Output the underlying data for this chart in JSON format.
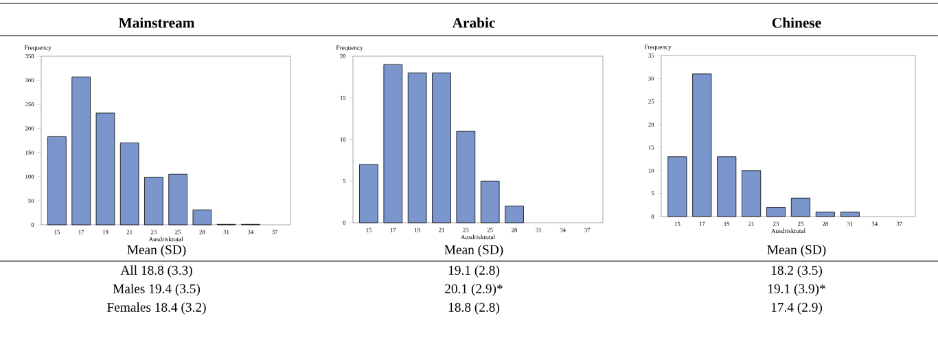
{
  "chart_data": [
    {
      "type": "bar",
      "title": "Mainstream",
      "xlabel": "Ausdrisktotal",
      "ylabel": "Frequency",
      "categories": [
        "15",
        "17",
        "19",
        "21",
        "23",
        "25",
        "28",
        "31",
        "34",
        "37"
      ],
      "values": [
        183,
        307,
        232,
        170,
        99,
        105,
        31,
        1,
        1,
        0
      ],
      "color": "#7b96cc",
      "ylim": [
        0,
        350
      ],
      "yticks": [
        0,
        50,
        100,
        150,
        200,
        250,
        300,
        350
      ],
      "annotations": [
        "Mean (SD)",
        "All 18.8 (3.3)",
        "Males 19.4 (3.5)",
        "Females 18.4 (3.2)"
      ]
    },
    {
      "type": "bar",
      "title": "Arabic",
      "xlabel": "Ausdrisktotal",
      "ylabel": "Frequency",
      "categories": [
        "15",
        "17",
        "19",
        "21",
        "23",
        "25",
        "28",
        "31",
        "34",
        "37"
      ],
      "values": [
        7,
        19,
        18,
        18,
        11,
        5,
        2,
        0,
        0,
        0
      ],
      "color": "#7b96cc",
      "ylim": [
        0,
        20
      ],
      "yticks": [
        0,
        5,
        10,
        15,
        20
      ],
      "annotations": [
        "Mean (SD)",
        "19.1 (2.8)",
        "20.1 (2.9)*",
        "18.8 (2.8)"
      ]
    },
    {
      "type": "bar",
      "title": "Chinese",
      "xlabel": "Ausdrisktotal",
      "ylabel": "Frequency",
      "categories": [
        "15",
        "17",
        "19",
        "21",
        "23",
        "25",
        "28",
        "31",
        "34",
        "37"
      ],
      "values": [
        13,
        31,
        13,
        10,
        2,
        4,
        1,
        1,
        0,
        0
      ],
      "color": "#7b96cc",
      "ylim": [
        0,
        35
      ],
      "yticks": [
        0,
        5,
        10,
        15,
        20,
        25,
        30,
        35
      ],
      "annotations": [
        "Mean (SD)",
        "18.2 (3.5)",
        "19.1 (3.9)*",
        "17.4 (2.9)"
      ]
    }
  ]
}
